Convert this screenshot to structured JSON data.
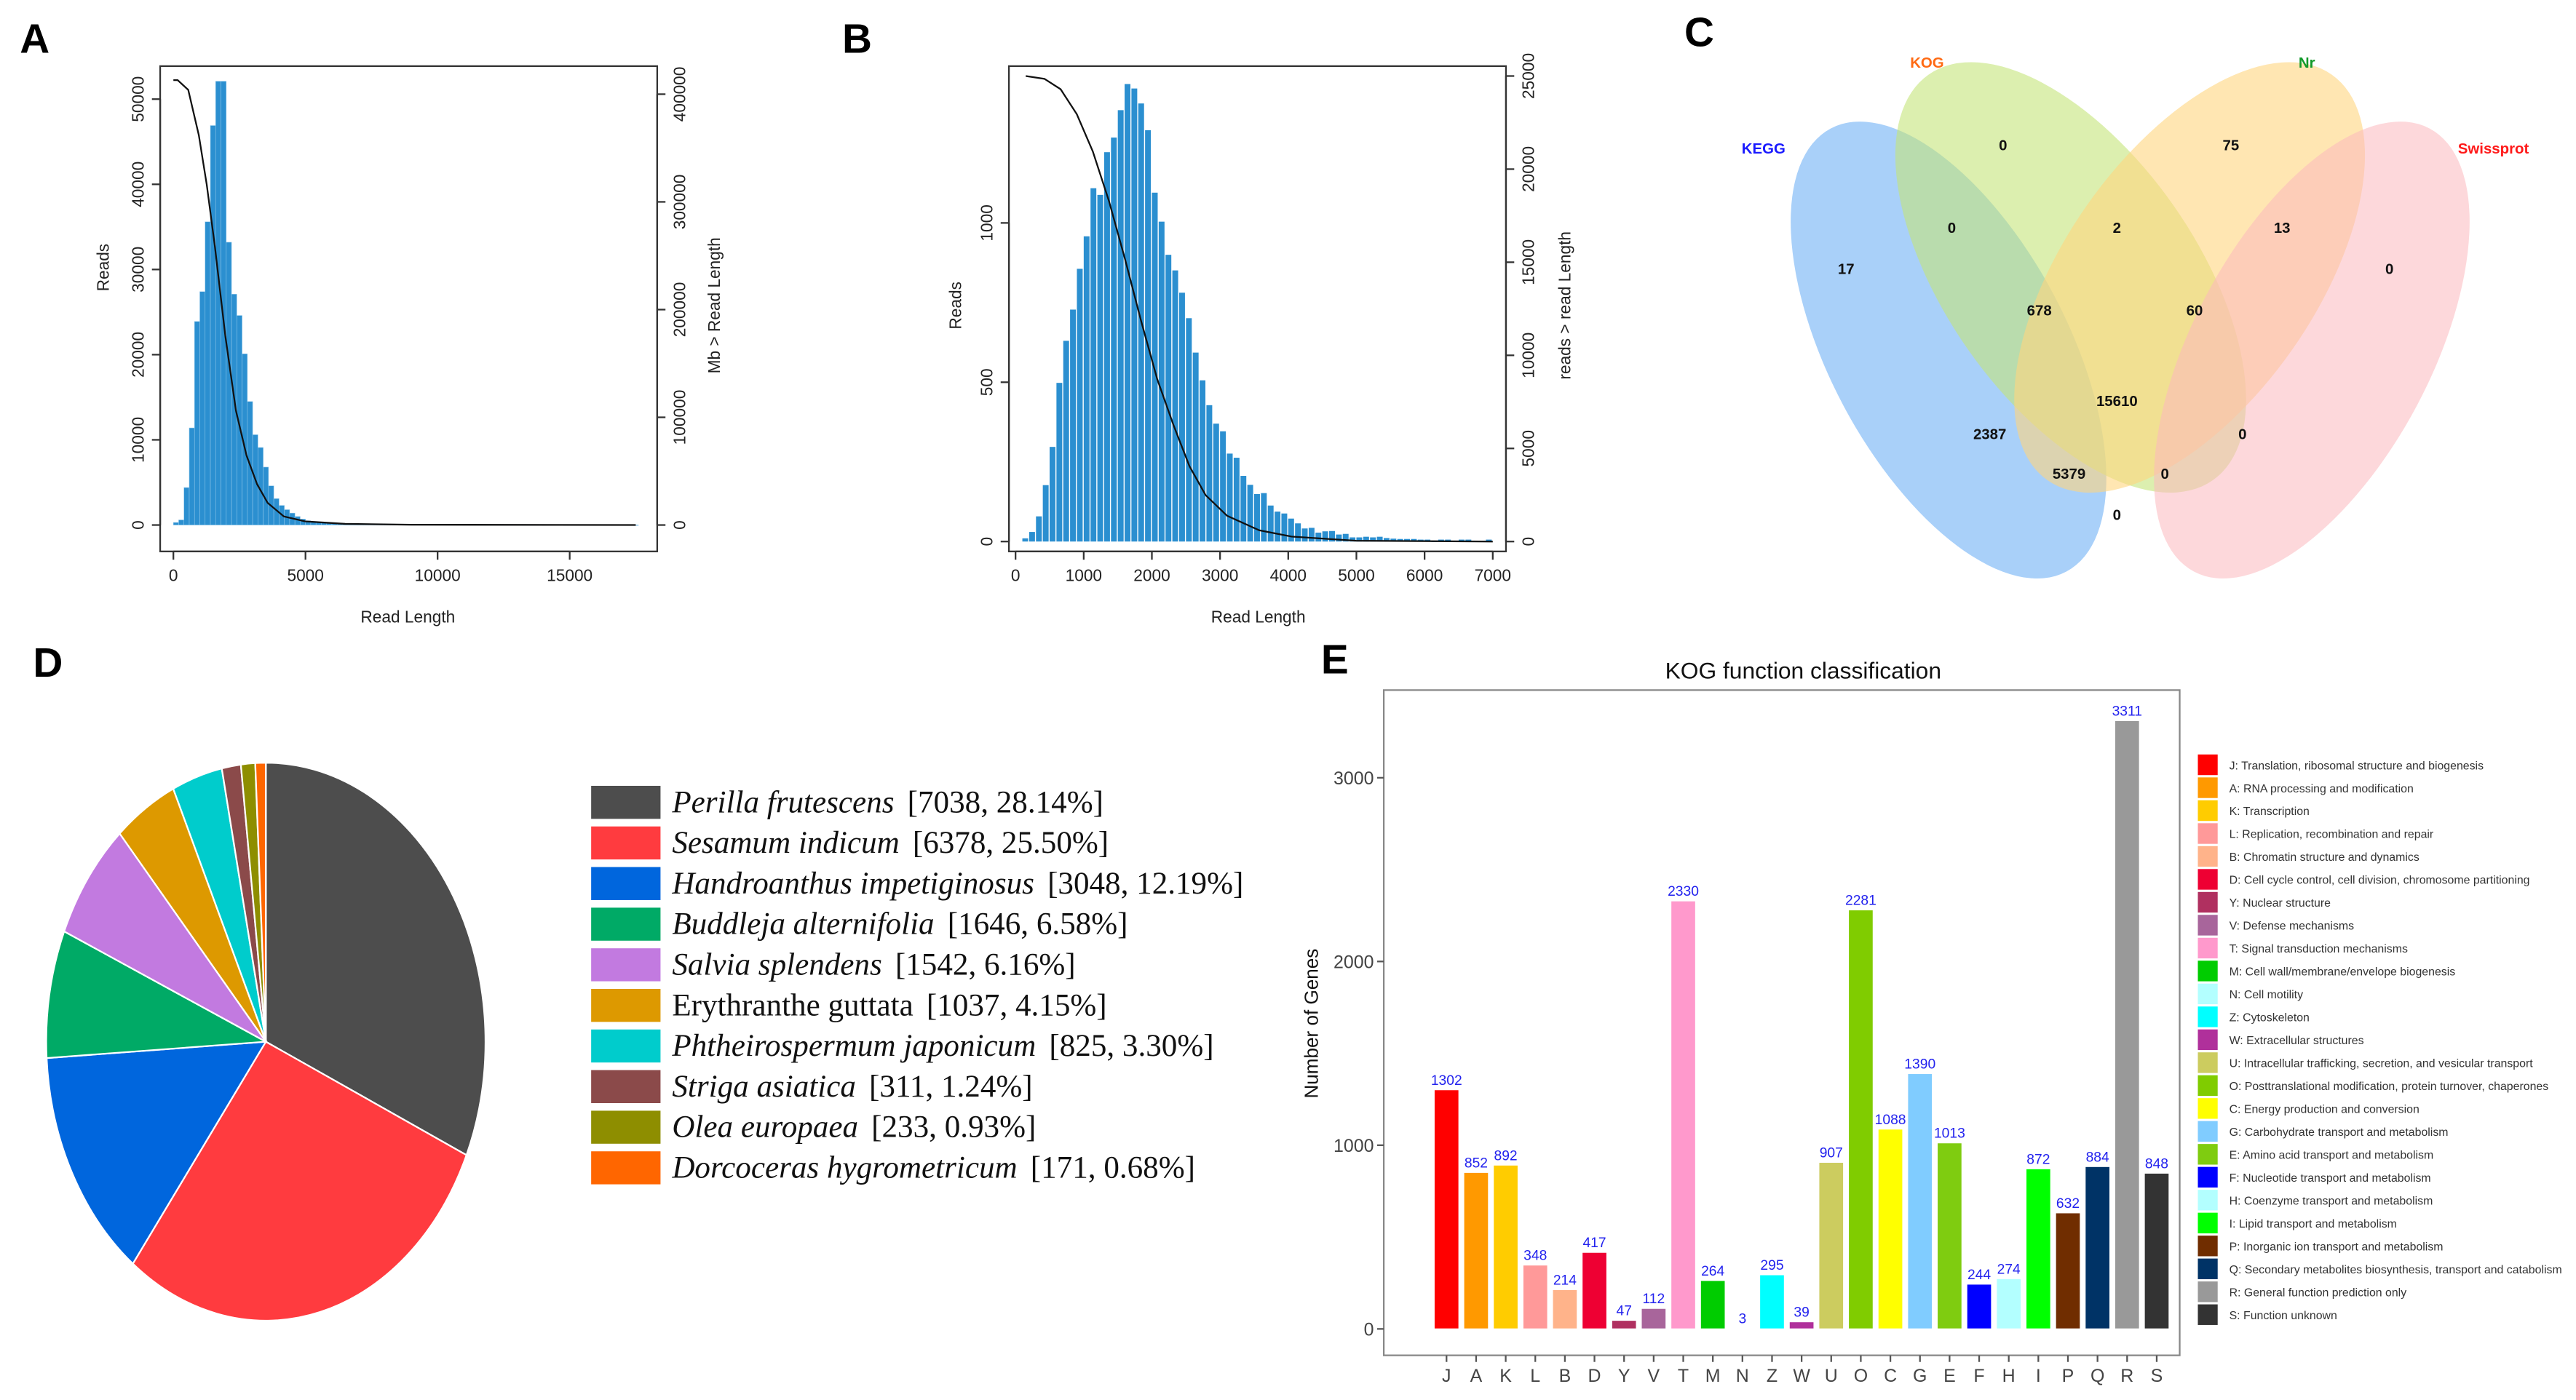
{
  "panels": {
    "a": "A",
    "b": "B",
    "c": "C",
    "d": "D",
    "e": "E"
  },
  "chart_data": [
    {
      "id": "A",
      "type": "bar",
      "subtype": "histogram-with-cumulative-line",
      "xlabel": "Read Length",
      "ylabel": "Reads",
      "ylabel_right": "Mb > Read Length",
      "xticks": [
        0,
        5000,
        10000,
        15000
      ],
      "yticks": [
        0,
        10000,
        20000,
        30000,
        40000,
        50000
      ],
      "yticks_right": [
        0,
        100000,
        200000,
        300000,
        400000
      ],
      "bar_color": "#2b8fd0",
      "bin_start": 0,
      "bin_width": 200,
      "values": [
        300,
        600,
        4400,
        11400,
        23900,
        27400,
        35600,
        46900,
        52100,
        52100,
        33200,
        27100,
        24600,
        20100,
        14500,
        10600,
        9100,
        6800,
        4600,
        3100,
        2300,
        1800,
        1400,
        1000,
        700,
        500,
        400,
        350,
        300,
        260,
        230,
        200,
        180,
        160,
        150,
        140,
        130,
        120,
        110,
        100,
        95,
        90,
        85,
        80,
        75,
        70,
        65,
        60,
        58,
        55,
        52,
        50,
        48,
        45,
        42,
        40,
        38,
        36,
        34,
        32,
        30,
        28,
        26,
        24,
        22,
        20,
        19,
        18,
        17,
        16,
        15,
        14,
        13,
        12,
        11,
        10,
        10,
        9,
        9,
        8,
        8,
        7,
        7,
        6,
        6,
        5,
        5,
        4
      ],
      "line": {
        "x": [
          0,
          160,
          560,
          960,
          1265,
          1570,
          1970,
          2370,
          2770,
          3170,
          3570,
          4180,
          4980,
          6500,
          9000,
          17500
        ],
        "y": [
          413000,
          413000,
          404000,
          362000,
          316000,
          259000,
          175000,
          106000,
          64500,
          37800,
          20600,
          8000,
          3400,
          1000,
          300,
          0
        ]
      }
    },
    {
      "id": "B",
      "type": "bar",
      "subtype": "histogram-with-cumulative-line",
      "xlabel": "Read Length",
      "ylabel": "Reads",
      "ylabel_right": "reads > read Length",
      "xticks": [
        0,
        1000,
        2000,
        3000,
        4000,
        5000,
        6000,
        7000
      ],
      "yticks": [
        0,
        500,
        1000
      ],
      "yticks_right": [
        0,
        5000,
        10000,
        15000,
        20000,
        25000
      ],
      "bar_color": "#2b8fd0",
      "bin_start": 100,
      "bin_width": 100,
      "values": [
        10,
        30,
        79,
        177,
        297,
        498,
        630,
        728,
        856,
        958,
        1109,
        1088,
        1222,
        1268,
        1354,
        1436,
        1422,
        1375,
        1291,
        1095,
        1004,
        900,
        851,
        781,
        701,
        593,
        506,
        428,
        370,
        346,
        276,
        263,
        206,
        178,
        149,
        152,
        113,
        94,
        88,
        72,
        57,
        41,
        43,
        28,
        32,
        33,
        22,
        24,
        13,
        13,
        15,
        13,
        15,
        11,
        9,
        8,
        8,
        8,
        6,
        6,
        0,
        6,
        6,
        0,
        6,
        6,
        0,
        0,
        6
      ],
      "line": {
        "x": [
          150,
          425,
          661,
          898,
          1134,
          1370,
          1606,
          1843,
          2079,
          2315,
          2551,
          2787,
          3102,
          3575,
          4047,
          4992,
          7000
        ],
        "y": [
          25000,
          24850,
          24290,
          22950,
          20950,
          18280,
          15170,
          11830,
          8720,
          6270,
          4050,
          2490,
          1380,
          600,
          270,
          45,
          0
        ]
      }
    },
    {
      "id": "C",
      "type": "venn",
      "sets": [
        {
          "name": "KEGG",
          "color": "#1a1aff",
          "fill": "#6fb0f5"
        },
        {
          "name": "KOG",
          "color": "#ff6a13",
          "fill": "#c4e57a"
        },
        {
          "name": "Nr",
          "color": "#129a2a",
          "fill": "#ffd67f"
        },
        {
          "name": "Swissprot",
          "color": "#ff1a1a",
          "fill": "#fbb8bd"
        }
      ],
      "regions": [
        {
          "sets": [
            "KOG"
          ],
          "count": "0"
        },
        {
          "sets": [
            "Nr"
          ],
          "count": "75"
        },
        {
          "sets": [
            "KEGG"
          ],
          "count": "17"
        },
        {
          "sets": [
            "Swissprot"
          ],
          "count": "0"
        },
        {
          "sets": [
            "KEGG",
            "KOG"
          ],
          "count": "0"
        },
        {
          "sets": [
            "KOG",
            "Nr"
          ],
          "count": "2"
        },
        {
          "sets": [
            "Nr",
            "Swissprot"
          ],
          "count": "13"
        },
        {
          "sets": [
            "KEGG",
            "KOG",
            "Nr"
          ],
          "count": "678"
        },
        {
          "sets": [
            "KOG",
            "Nr",
            "Swissprot"
          ],
          "count": "60"
        },
        {
          "sets": [
            "KEGG",
            "KOG",
            "Nr",
            "Swissprot"
          ],
          "count": "15610"
        },
        {
          "sets": [
            "KEGG",
            "Nr"
          ],
          "count": "2387"
        },
        {
          "sets": [
            "KOG",
            "Swissprot"
          ],
          "count": "0"
        },
        {
          "sets": [
            "KEGG",
            "Nr",
            "Swissprot"
          ],
          "count": "5379"
        },
        {
          "sets": [
            "KEGG",
            "KOG",
            "Swissprot"
          ],
          "count": "0"
        },
        {
          "sets": [
            "KEGG",
            "Swissprot"
          ],
          "count": "0"
        }
      ]
    },
    {
      "id": "D",
      "type": "pie",
      "slices": [
        {
          "name": "Perilla frutescens",
          "value": 7038,
          "label": "[7038, 28.14%]",
          "color": "#4d4d4d",
          "italic": true
        },
        {
          "name": "Sesamum indicum",
          "value": 6378,
          "label": "[6378, 25.50%]",
          "color": "#ff3b3f",
          "italic": true
        },
        {
          "name": "Handroanthus impetiginosus",
          "value": 3048,
          "label": "[3048, 12.19%]",
          "color": "#0066dd",
          "italic": true
        },
        {
          "name": "Buddleja alternifolia",
          "value": 1646,
          "label": "[1646, 6.58%]",
          "color": "#00aa66",
          "italic": true
        },
        {
          "name": "Salvia splendens",
          "value": 1542,
          "label": "[1542, 6.16%]",
          "color": "#c27ae0",
          "italic": true
        },
        {
          "name": "Erythranthe guttata",
          "value": 1037,
          "label": "[1037, 4.15%]",
          "color": "#dd9900",
          "italic": false
        },
        {
          "name": "Phtheirospermum japonicum",
          "value": 825,
          "label": "[825, 3.30%]",
          "color": "#00cccc",
          "italic": true
        },
        {
          "name": "Striga asiatica",
          "value": 311,
          "label": "[311, 1.24%]",
          "color": "#8b4a4a",
          "italic": true
        },
        {
          "name": "Olea europaea",
          "value": 233,
          "label": "[233, 0.93%]",
          "color": "#8e8e00",
          "italic": true
        },
        {
          "name": "Dorcoceras hygrometricum",
          "value": 171,
          "label": "[171, 0.68%]",
          "color": "#ff6600",
          "italic": true
        }
      ],
      "legend": "right"
    },
    {
      "id": "E",
      "type": "bar",
      "title": "KOG function classification",
      "xlabel": "",
      "ylabel": "Number of Genes",
      "ylim": [
        -150,
        3400
      ],
      "yticks": [
        0,
        1000,
        2000,
        3000
      ],
      "label_color": "#2222ee",
      "categories": [
        "J",
        "A",
        "K",
        "L",
        "B",
        "D",
        "Y",
        "V",
        "T",
        "M",
        "N",
        "Z",
        "W",
        "U",
        "O",
        "C",
        "G",
        "E",
        "F",
        "H",
        "I",
        "P",
        "Q",
        "R",
        "S"
      ],
      "values": [
        1302,
        852,
        892,
        348,
        214,
        417,
        47,
        112,
        2330,
        264,
        3,
        295,
        39,
        907,
        2281,
        1088,
        1390,
        1013,
        244,
        274,
        872,
        632,
        884,
        3311,
        848
      ],
      "colors": [
        "#ff0000",
        "#ff9900",
        "#ffcc00",
        "#ff9999",
        "#ffb38a",
        "#ee0033",
        "#b03060",
        "#a8659b",
        "#ff99cc",
        "#00cc00",
        "#b3ffff",
        "#00ffff",
        "#b0309b",
        "#cccc5f",
        "#80cc00",
        "#ffff00",
        "#80ccff",
        "#7fcc10",
        "#0000ff",
        "#b3ffff",
        "#00ff00",
        "#702d00",
        "#003366",
        "#999999",
        "#333333"
      ],
      "legend": [
        "J: Translation, ribosomal structure and biogenesis",
        "A: RNA processing and modification",
        "K: Transcription",
        "L: Replication, recombination and repair",
        "B: Chromatin structure and dynamics",
        "D: Cell cycle control, cell division, chromosome partitioning",
        "Y: Nuclear structure",
        "V: Defense mechanisms",
        "T: Signal transduction mechanisms",
        "M: Cell wall/membrane/envelope biogenesis",
        "N: Cell motility",
        "Z: Cytoskeleton",
        "W: Extracellular structures",
        "U: Intracellular trafficking, secretion, and vesicular transport",
        "O: Posttranslational modification, protein turnover, chaperones",
        "C: Energy production and conversion",
        "G: Carbohydrate transport and metabolism",
        "E: Amino acid transport and metabolism",
        "F: Nucleotide transport and metabolism",
        "H: Coenzyme transport and metabolism",
        "I: Lipid transport and metabolism",
        "P: Inorganic ion transport and metabolism",
        "Q: Secondary metabolites biosynthesis, transport and catabolism",
        "R: General function prediction only",
        "S: Function unknown"
      ]
    }
  ]
}
